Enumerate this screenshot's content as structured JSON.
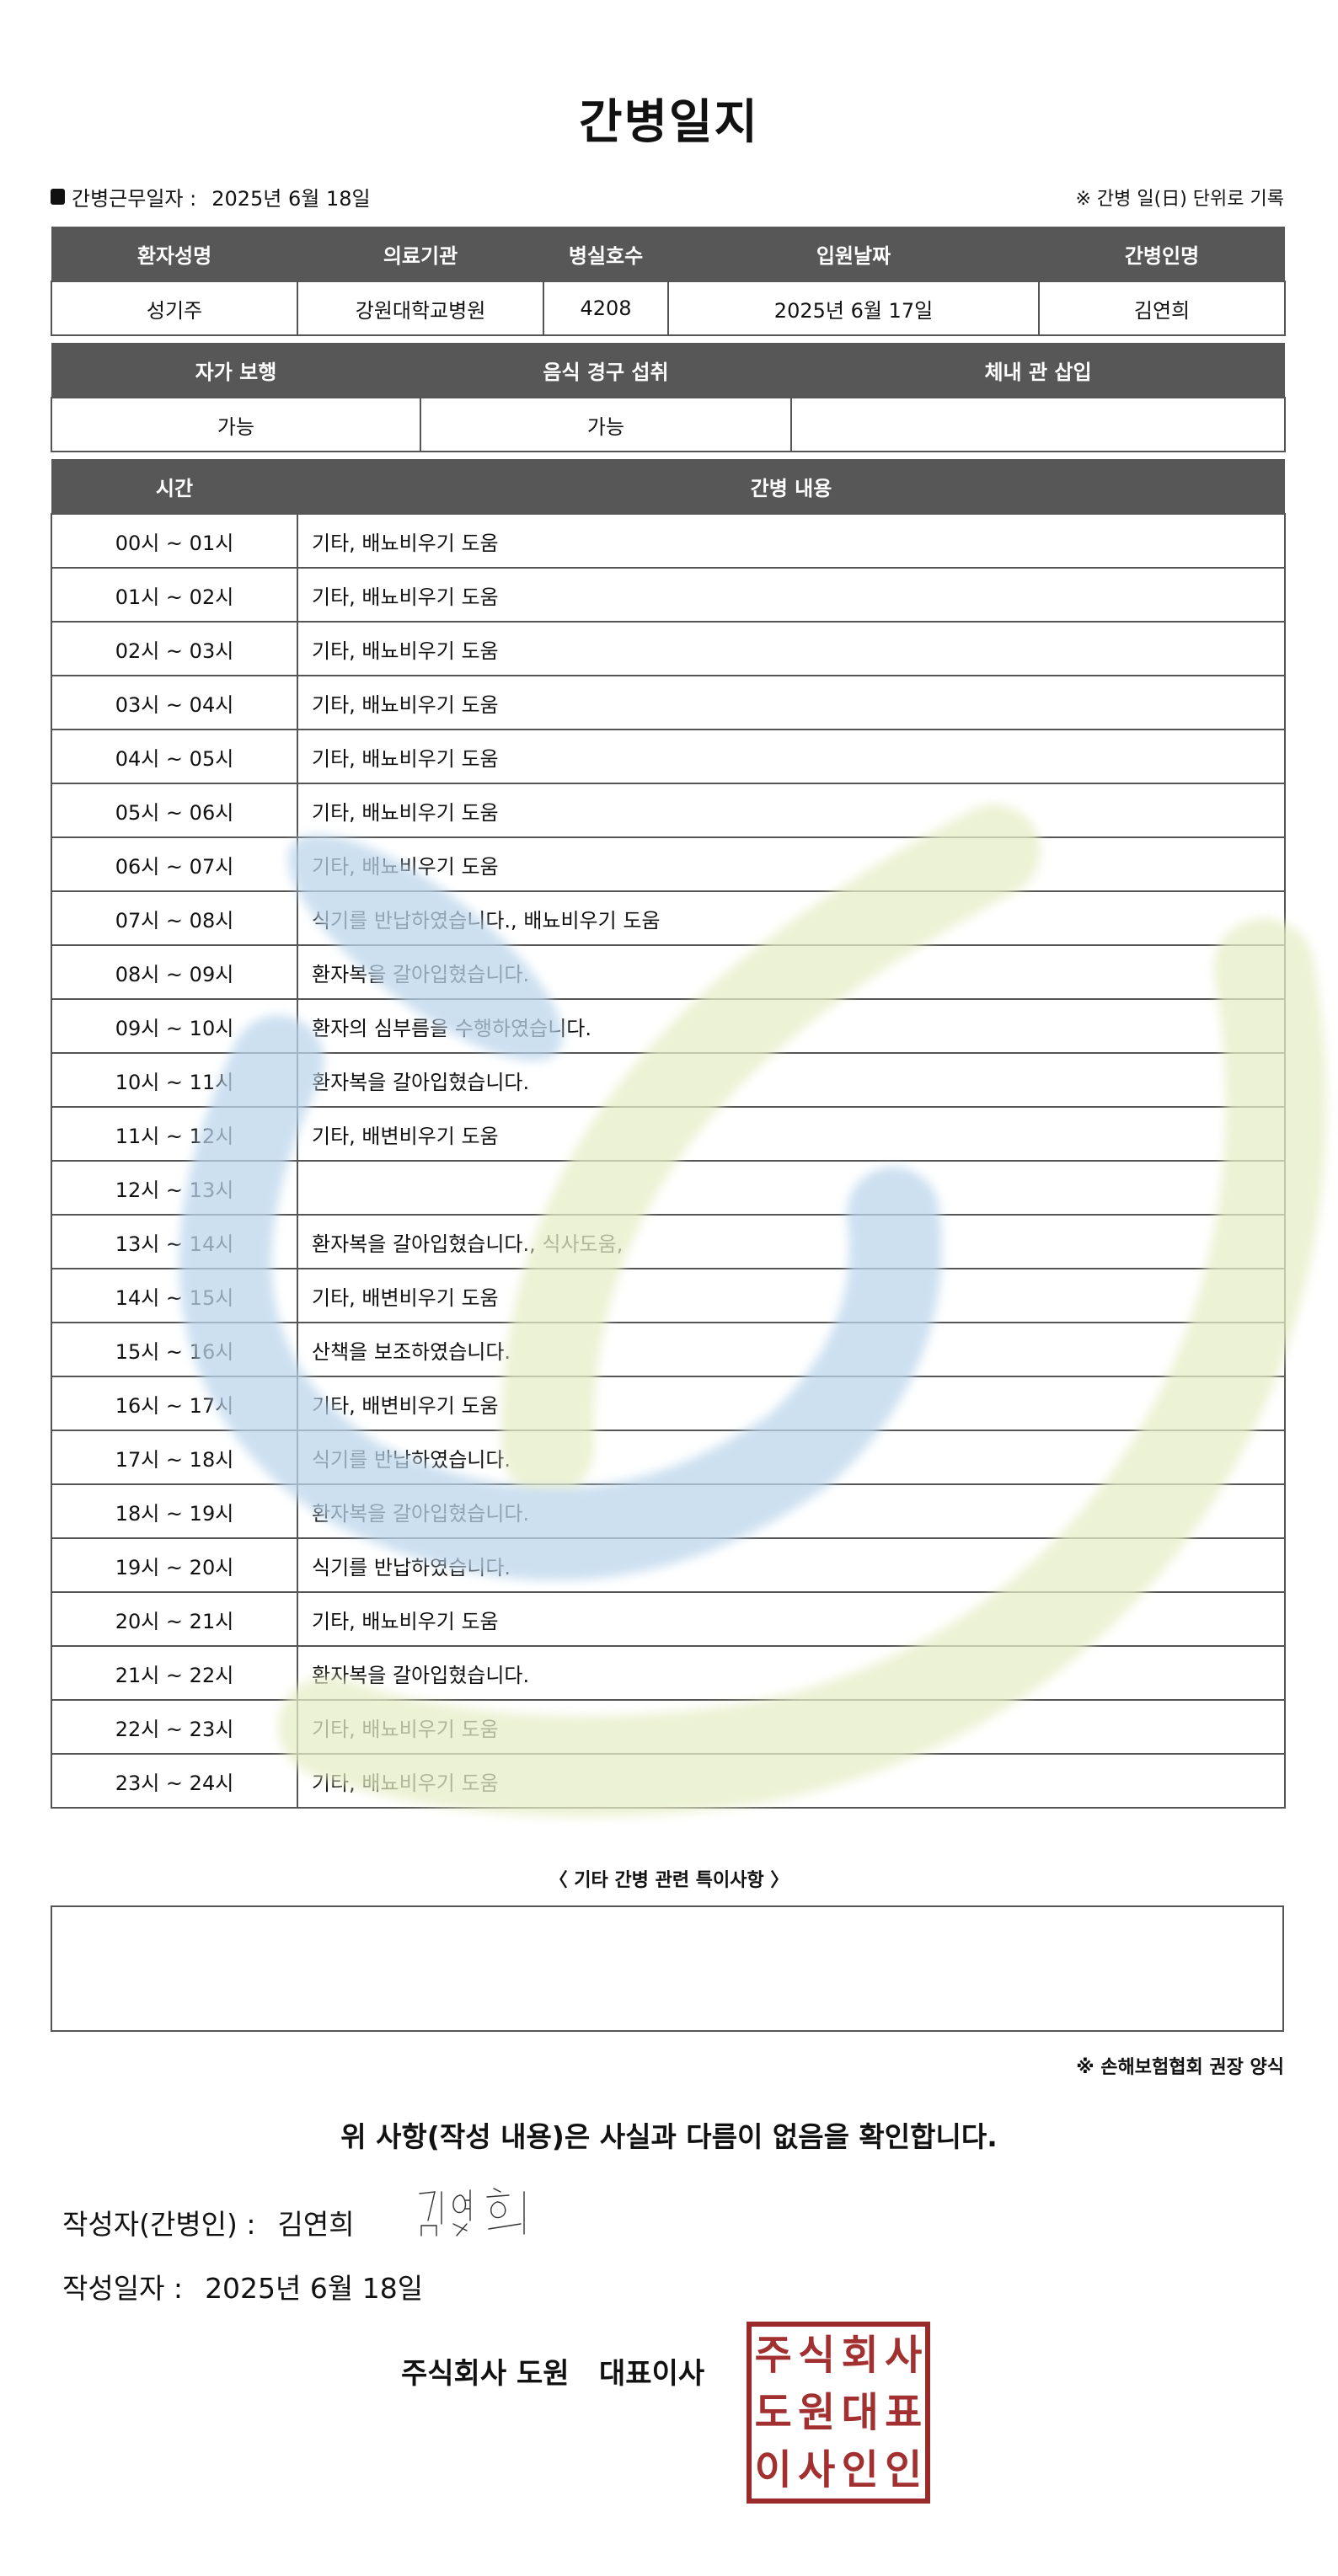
{
  "title": "간병일지",
  "work_date": {
    "label": "간병근무일자 :",
    "value": "2025년 6월 18일"
  },
  "unit_note": "※ 간병 일(日) 단위로 기록",
  "patient_table": {
    "headers": [
      "환자성명",
      "의료기관",
      "병실호수",
      "입원날짜",
      "간병인명"
    ],
    "values": [
      "성기주",
      "강원대학교병원",
      "4208",
      "2025년 6월 17일",
      "김연희"
    ]
  },
  "status_table": {
    "headers": [
      "자가 보행",
      "음식 경구 섭취",
      "체내 관 삽입"
    ],
    "values": [
      "가능",
      "가능",
      ""
    ]
  },
  "log_table": {
    "headers": [
      "시간",
      "간병 내용"
    ],
    "rows": [
      {
        "time": "00시 ~ 01시",
        "content": "기타, 배뇨비우기 도움"
      },
      {
        "time": "01시 ~ 02시",
        "content": "기타, 배뇨비우기 도움"
      },
      {
        "time": "02시 ~ 03시",
        "content": "기타, 배뇨비우기 도움"
      },
      {
        "time": "03시 ~ 04시",
        "content": "기타, 배뇨비우기 도움"
      },
      {
        "time": "04시 ~ 05시",
        "content": "기타, 배뇨비우기 도움"
      },
      {
        "time": "05시 ~ 06시",
        "content": "기타, 배뇨비우기 도움"
      },
      {
        "time": "06시 ~ 07시",
        "content": "기타, 배뇨비우기 도움"
      },
      {
        "time": "07시 ~ 08시",
        "content": "식기를 반납하였습니다., 배뇨비우기 도움"
      },
      {
        "time": "08시 ~ 09시",
        "content": "환자복을 갈아입혔습니다."
      },
      {
        "time": "09시 ~ 10시",
        "content": "환자의 심부름을 수행하였습니다."
      },
      {
        "time": "10시 ~ 11시",
        "content": "환자복을 갈아입혔습니다."
      },
      {
        "time": "11시 ~ 12시",
        "content": "기타, 배변비우기 도움"
      },
      {
        "time": "12시 ~ 13시",
        "content": ""
      },
      {
        "time": "13시 ~ 14시",
        "content": "환자복을 갈아입혔습니다., 식사도움,"
      },
      {
        "time": "14시 ~ 15시",
        "content": "기타, 배변비우기 도움"
      },
      {
        "time": "15시 ~ 16시",
        "content": "산책을 보조하였습니다."
      },
      {
        "time": "16시 ~ 17시",
        "content": "기타, 배변비우기 도움"
      },
      {
        "time": "17시 ~ 18시",
        "content": "식기를 반납하였습니다."
      },
      {
        "time": "18시 ~ 19시",
        "content": "환자복을 갈아입혔습니다."
      },
      {
        "time": "19시 ~ 20시",
        "content": "식기를 반납하였습니다."
      },
      {
        "time": "20시 ~ 21시",
        "content": "기타, 배뇨비우기 도움"
      },
      {
        "time": "21시 ~ 22시",
        "content": "환자복을 갈아입혔습니다."
      },
      {
        "time": "22시 ~ 23시",
        "content": "기타, 배뇨비우기 도움"
      },
      {
        "time": "23시 ~ 24시",
        "content": "기타, 배뇨비우기 도움"
      }
    ]
  },
  "special_notes": {
    "label": "〈 기타 간병 관련 특이사항 〉",
    "value": ""
  },
  "recommend_note": "※ 손해보험협회 권장 양식",
  "confirm_text": "위 사항(작성 내용)은 사실과 다름이 없음을 확인합니다.",
  "writer": {
    "label": "작성자(간병인) :",
    "name": "김연희",
    "signature": "김연희"
  },
  "written_date": {
    "label": "작성일자 :",
    "value": "2025년 6월 18일"
  },
  "company": "주식회사 도원   대표이사",
  "stamp": {
    "text": "주식회사도원대표이사인인",
    "color": "#9b2b2b"
  },
  "colors": {
    "header_bg": "#575757",
    "watermark_blue": "#bcd6ec",
    "watermark_green": "#e6eec6"
  }
}
